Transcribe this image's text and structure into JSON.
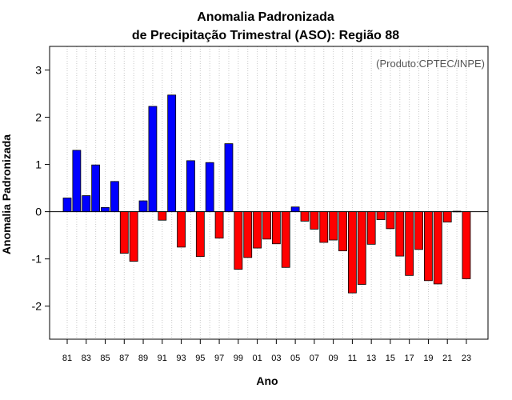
{
  "chart_data": {
    "type": "bar",
    "title_line1": "Anomalia Padronizada",
    "title_line2": "de Precipitação Trimestral (ASO): Região 88",
    "xlabel": "Ano",
    "ylabel": "Anomalia Padronizada",
    "credit": "(Produto:CPTEC/INPE)",
    "ylim": [
      -2.7,
      3.5
    ],
    "yticks": [
      -2,
      -1,
      0,
      1,
      2,
      3
    ],
    "years": [
      "81",
      "82",
      "83",
      "84",
      "85",
      "86",
      "87",
      "88",
      "89",
      "90",
      "91",
      "92",
      "93",
      "94",
      "95",
      "96",
      "97",
      "98",
      "99",
      "00",
      "01",
      "02",
      "03",
      "04",
      "05",
      "06",
      "07",
      "08",
      "09",
      "10",
      "11",
      "12",
      "13",
      "14",
      "15",
      "16",
      "17",
      "18",
      "19",
      "20",
      "21",
      "22",
      "23"
    ],
    "xtick_labels": [
      "81",
      "83",
      "85",
      "87",
      "89",
      "91",
      "93",
      "95",
      "97",
      "99",
      "01",
      "03",
      "05",
      "07",
      "09",
      "11",
      "13",
      "15",
      "17",
      "19",
      "21",
      "23"
    ],
    "values": [
      0.29,
      1.3,
      0.34,
      0.99,
      0.09,
      0.64,
      -0.88,
      -1.05,
      0.23,
      2.23,
      -0.18,
      2.47,
      -0.75,
      1.08,
      -0.95,
      1.04,
      -0.56,
      1.44,
      -1.22,
      -0.97,
      -0.77,
      -0.58,
      -0.68,
      -1.18,
      0.1,
      -0.2,
      -0.37,
      -0.65,
      -0.6,
      -0.83,
      -1.72,
      -1.54,
      -0.69,
      -0.17,
      -0.36,
      -0.94,
      -1.35,
      -0.8,
      -1.46,
      -1.53,
      -0.22,
      0.01,
      -1.42
    ],
    "colors": {
      "positive": "#0000ff",
      "negative": "#ff0000",
      "grid": "#c8c8c8",
      "zero_line": "#000000"
    }
  }
}
